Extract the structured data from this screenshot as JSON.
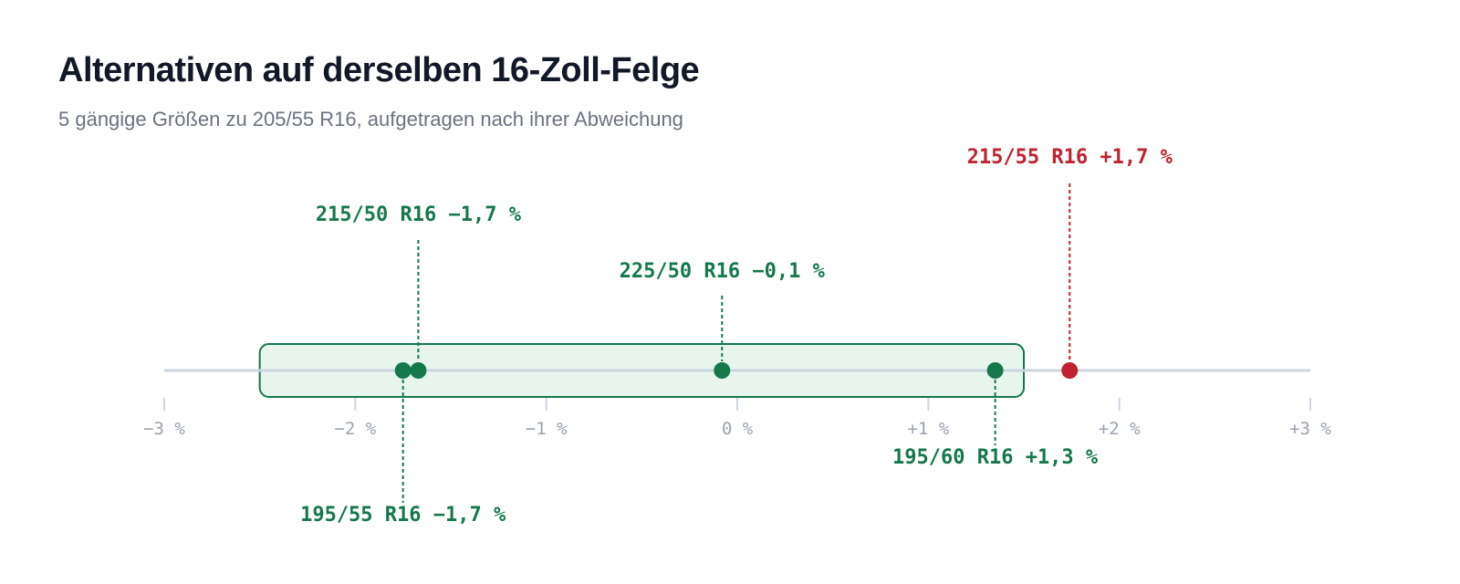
{
  "header": {
    "title": "Alternativen auf derselben 16-Zoll-Felge",
    "subtitle": "5 gängige Größen zu 205/55 R16, aufgetragen nach ihrer Abweichung"
  },
  "colors": {
    "ok": "#15784b",
    "warn": "#c0222f",
    "band_fill": "#e8f5ec",
    "axis": "#cbd5e1",
    "tick": "#cbd5e1",
    "tick_text": "#9aa3b0"
  },
  "chart_data": {
    "type": "scatter",
    "xlim": [
      -3,
      3
    ],
    "tolerance_band": [
      -2.5,
      1.5
    ],
    "ticks": [
      {
        "value": -3,
        "label": "−3 %"
      },
      {
        "value": -2,
        "label": "−2 %"
      },
      {
        "value": -1,
        "label": "−1 %"
      },
      {
        "value": 0,
        "label": "0 %"
      },
      {
        "value": 1,
        "label": "+1 %"
      },
      {
        "value": 2,
        "label": "+2 %"
      },
      {
        "value": 3,
        "label": "+3 %"
      }
    ],
    "points": [
      {
        "size": "195/55 R16",
        "deviation": -1.75,
        "label": "195/55 R16 −1,7 %",
        "status": "ok",
        "side": "below",
        "level": 2
      },
      {
        "size": "215/50 R16",
        "deviation": -1.67,
        "label": "215/50 R16 −1,7 %",
        "status": "ok",
        "side": "above",
        "level": 3
      },
      {
        "size": "225/50 R16",
        "deviation": -0.08,
        "label": "225/50 R16 −0,1 %",
        "status": "ok",
        "side": "above",
        "level": 2
      },
      {
        "size": "195/60 R16",
        "deviation": 1.35,
        "label": "195/60 R16 +1,3 %",
        "status": "ok",
        "side": "below",
        "level": 1
      },
      {
        "size": "215/55 R16",
        "deviation": 1.74,
        "label": "215/55 R16 +1,7 %",
        "status": "warn",
        "side": "above",
        "level": 4
      }
    ]
  }
}
